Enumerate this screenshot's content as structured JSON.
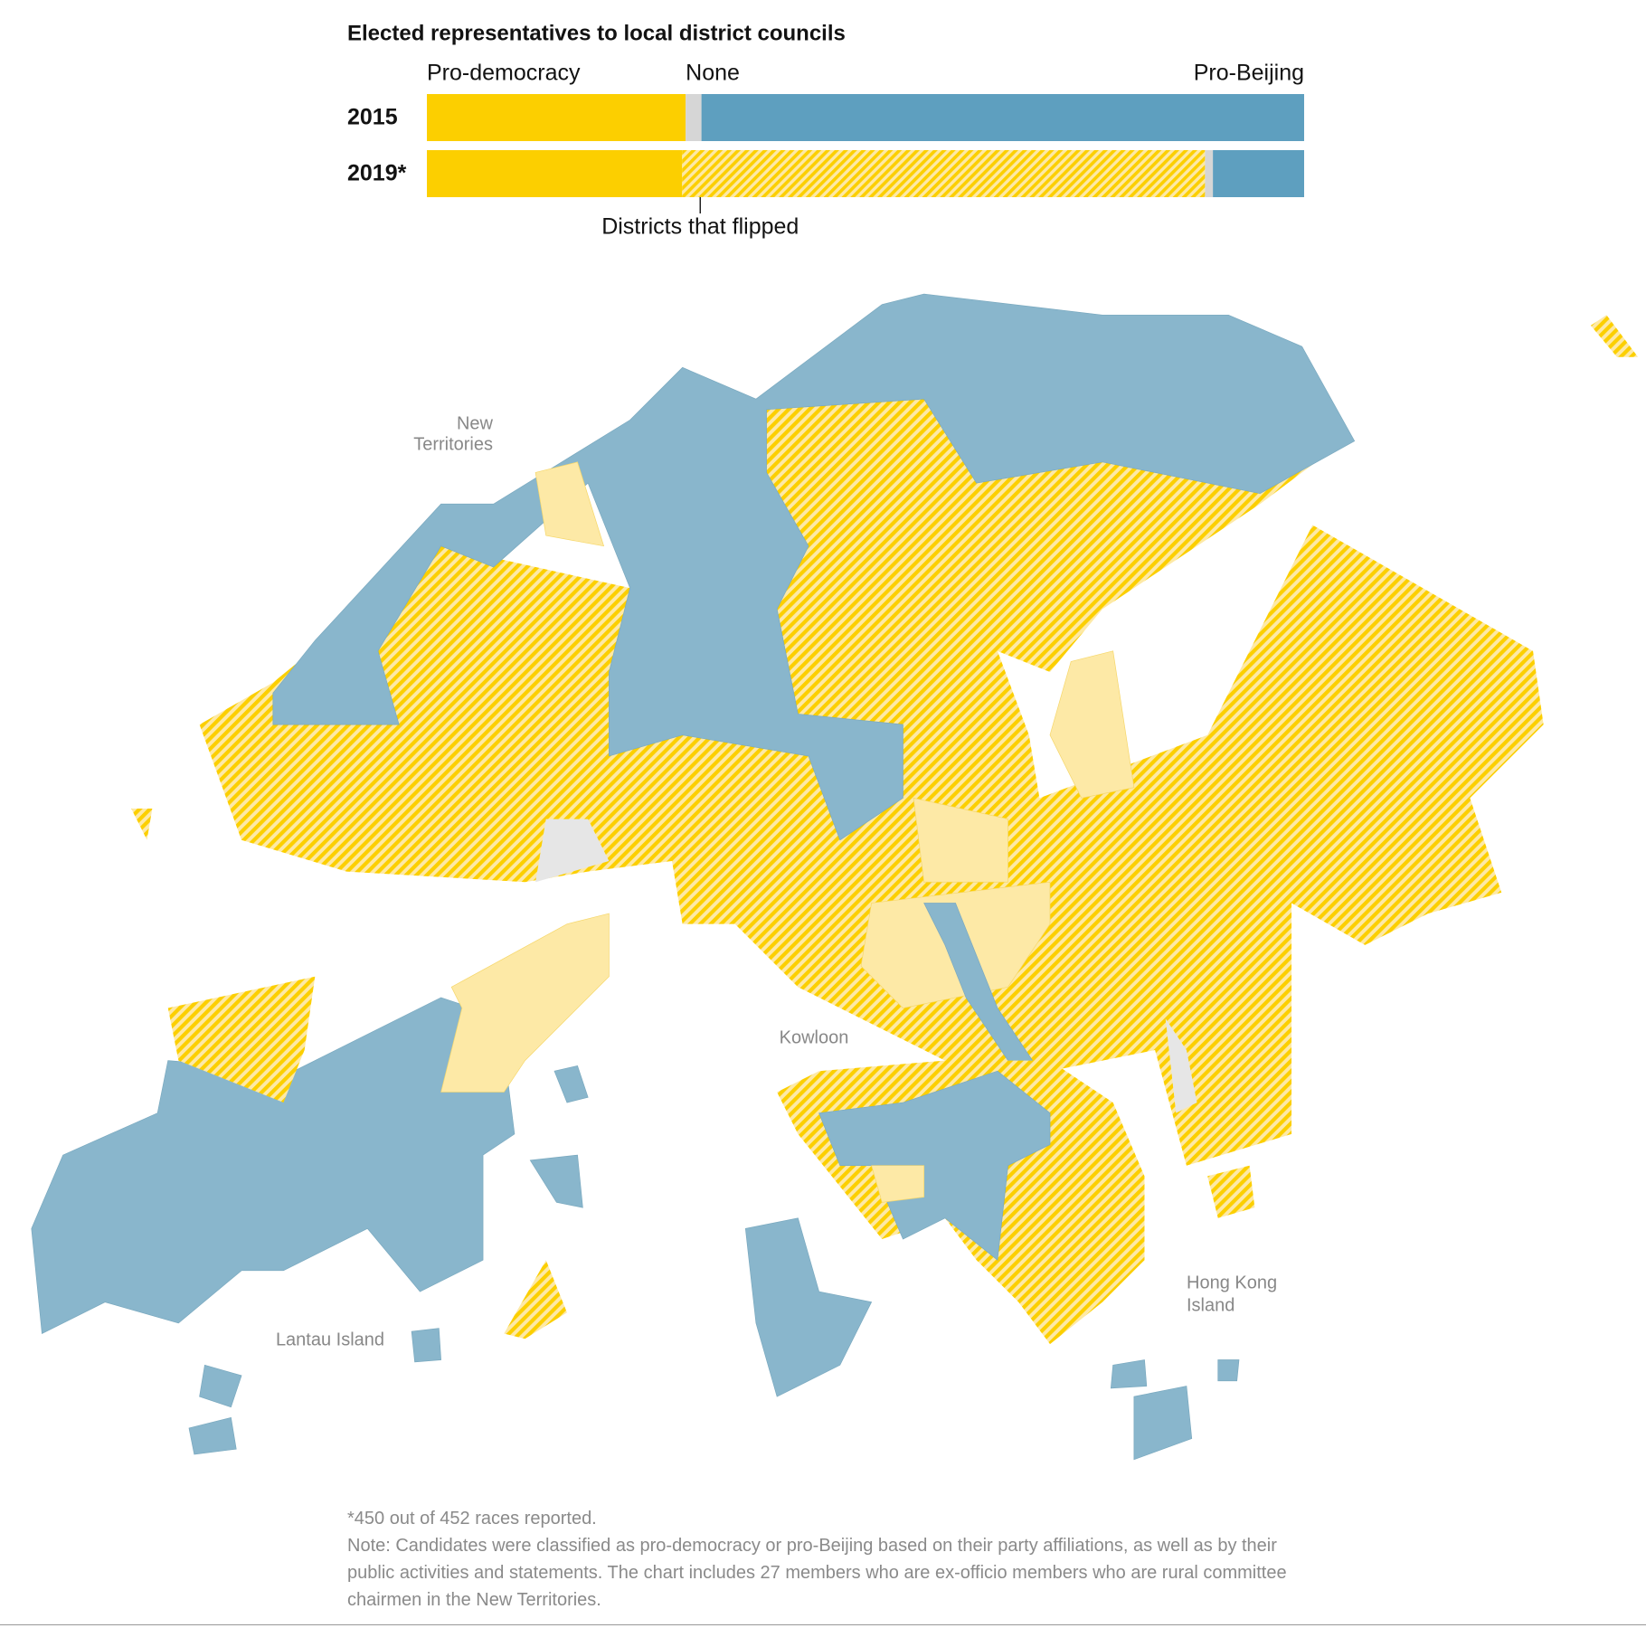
{
  "chart_data": {
    "type": "stacked-bar-horizontal",
    "title": "Elected representatives to local district councils",
    "categories": [
      "2015",
      "2019*"
    ],
    "series": [
      {
        "name": "Pro-democracy",
        "color": "#fccf00",
        "values": [
          29.5,
          29.1
        ]
      },
      {
        "name": "Districts that flipped",
        "color": "#fccf00",
        "hatch": true,
        "values": [
          null,
          59.6
        ]
      },
      {
        "name": "None",
        "color": "#d6d6d6",
        "values": [
          1.8,
          0.9
        ]
      },
      {
        "name": "Pro-Beijing",
        "color": "#5e9fbf",
        "values": [
          68.7,
          10.4
        ]
      }
    ],
    "xlim": [
      0,
      100
    ],
    "annotations": [
      "New",
      "Territories",
      "Kowloon",
      "Lantau Island",
      "Hong Kong",
      "Island"
    ],
    "footnotes": [
      "*450 out of 452 races reported.",
      "Note: Candidates were classified as pro-democracy or pro-Beijing based on their party affiliations, as well as by their public activities and statements. The chart includes 27 members who are ex-officio members who are rural committee chairmen in the New Territories."
    ]
  }
}
